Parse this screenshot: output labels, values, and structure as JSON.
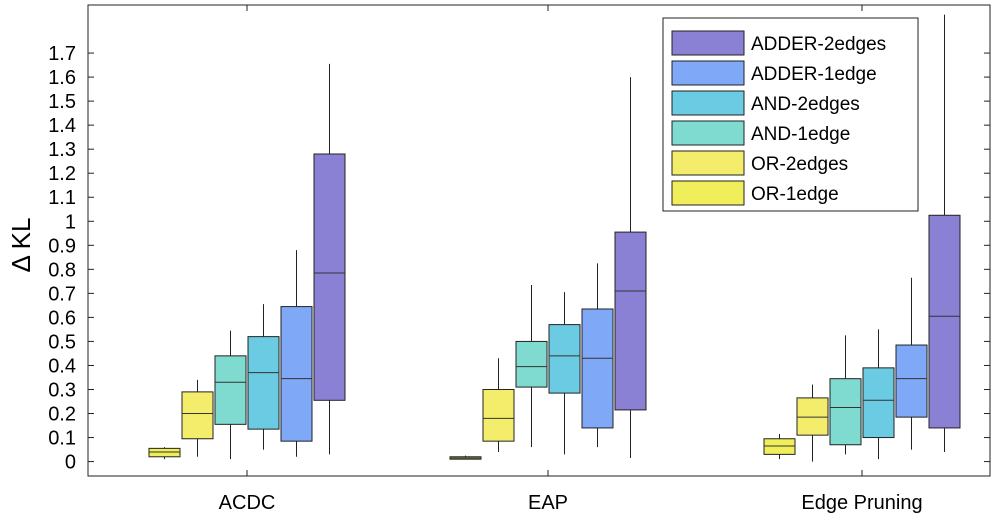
{
  "chart_data": {
    "type": "box",
    "ylabel": "Δ KL",
    "xlabel": "",
    "ylim": [
      -0.06,
      1.9
    ],
    "yticks": [
      "0",
      "0.1",
      "0.2",
      "0.3",
      "0.4",
      "0.5",
      "0.6",
      "0.7",
      "0.8",
      "0.9",
      "1",
      "1.1",
      "1.2",
      "1.3",
      "1.4",
      "1.5",
      "1.6",
      "1.7"
    ],
    "ytick_values": [
      0,
      0.1,
      0.2,
      0.3,
      0.4,
      0.5,
      0.6,
      0.7,
      0.8,
      0.9,
      1,
      1.1,
      1.2,
      1.3,
      1.4,
      1.5,
      1.6,
      1.7
    ],
    "categories": [
      "ACDC",
      "EAP",
      "Edge Pruning"
    ],
    "grid": false,
    "legend_position": "top-right",
    "series": [
      {
        "name": "OR-1edge",
        "color": "#f0ee5a",
        "boxes": [
          {
            "min": 0.01,
            "q1": 0.02,
            "median": 0.04,
            "q3": 0.055,
            "max": 0.06
          },
          {
            "min": 0.01,
            "q1": 0.01,
            "median": 0.015,
            "q3": 0.02,
            "max": 0.025
          },
          {
            "min": 0.01,
            "q1": 0.03,
            "median": 0.065,
            "q3": 0.095,
            "max": 0.115
          }
        ]
      },
      {
        "name": "OR-2edges",
        "color": "#f4ed6c",
        "boxes": [
          {
            "min": 0.02,
            "q1": 0.095,
            "median": 0.2,
            "q3": 0.29,
            "max": 0.34
          },
          {
            "min": 0.04,
            "q1": 0.085,
            "median": 0.18,
            "q3": 0.3,
            "max": 0.43
          },
          {
            "min": 0.0,
            "q1": 0.11,
            "median": 0.185,
            "q3": 0.265,
            "max": 0.32
          }
        ]
      },
      {
        "name": "AND-1edge",
        "color": "#7fdbcf",
        "boxes": [
          {
            "min": 0.01,
            "q1": 0.155,
            "median": 0.33,
            "q3": 0.44,
            "max": 0.545
          },
          {
            "min": 0.06,
            "q1": 0.31,
            "median": 0.395,
            "q3": 0.5,
            "max": 0.735
          },
          {
            "min": 0.03,
            "q1": 0.07,
            "median": 0.225,
            "q3": 0.345,
            "max": 0.525
          }
        ]
      },
      {
        "name": "AND-2edges",
        "color": "#6bcbe3",
        "boxes": [
          {
            "min": 0.05,
            "q1": 0.135,
            "median": 0.37,
            "q3": 0.52,
            "max": 0.655
          },
          {
            "min": 0.03,
            "q1": 0.285,
            "median": 0.44,
            "q3": 0.57,
            "max": 0.705
          },
          {
            "min": 0.01,
            "q1": 0.1,
            "median": 0.255,
            "q3": 0.39,
            "max": 0.55
          }
        ]
      },
      {
        "name": "ADDER-1edge",
        "color": "#7fa8f6",
        "boxes": [
          {
            "min": 0.02,
            "q1": 0.085,
            "median": 0.345,
            "q3": 0.645,
            "max": 0.88
          },
          {
            "min": 0.06,
            "q1": 0.14,
            "median": 0.43,
            "q3": 0.635,
            "max": 0.825
          },
          {
            "min": 0.05,
            "q1": 0.185,
            "median": 0.345,
            "q3": 0.485,
            "max": 0.765
          }
        ]
      },
      {
        "name": "ADDER-2edges",
        "color": "#8a80d4",
        "boxes": [
          {
            "min": 0.03,
            "q1": 0.255,
            "median": 0.785,
            "q3": 1.28,
            "max": 1.655
          },
          {
            "min": 0.015,
            "q1": 0.215,
            "median": 0.71,
            "q3": 0.955,
            "max": 1.6
          },
          {
            "min": 0.04,
            "q1": 0.14,
            "median": 0.605,
            "q3": 1.025,
            "max": 1.86
          }
        ]
      }
    ]
  }
}
